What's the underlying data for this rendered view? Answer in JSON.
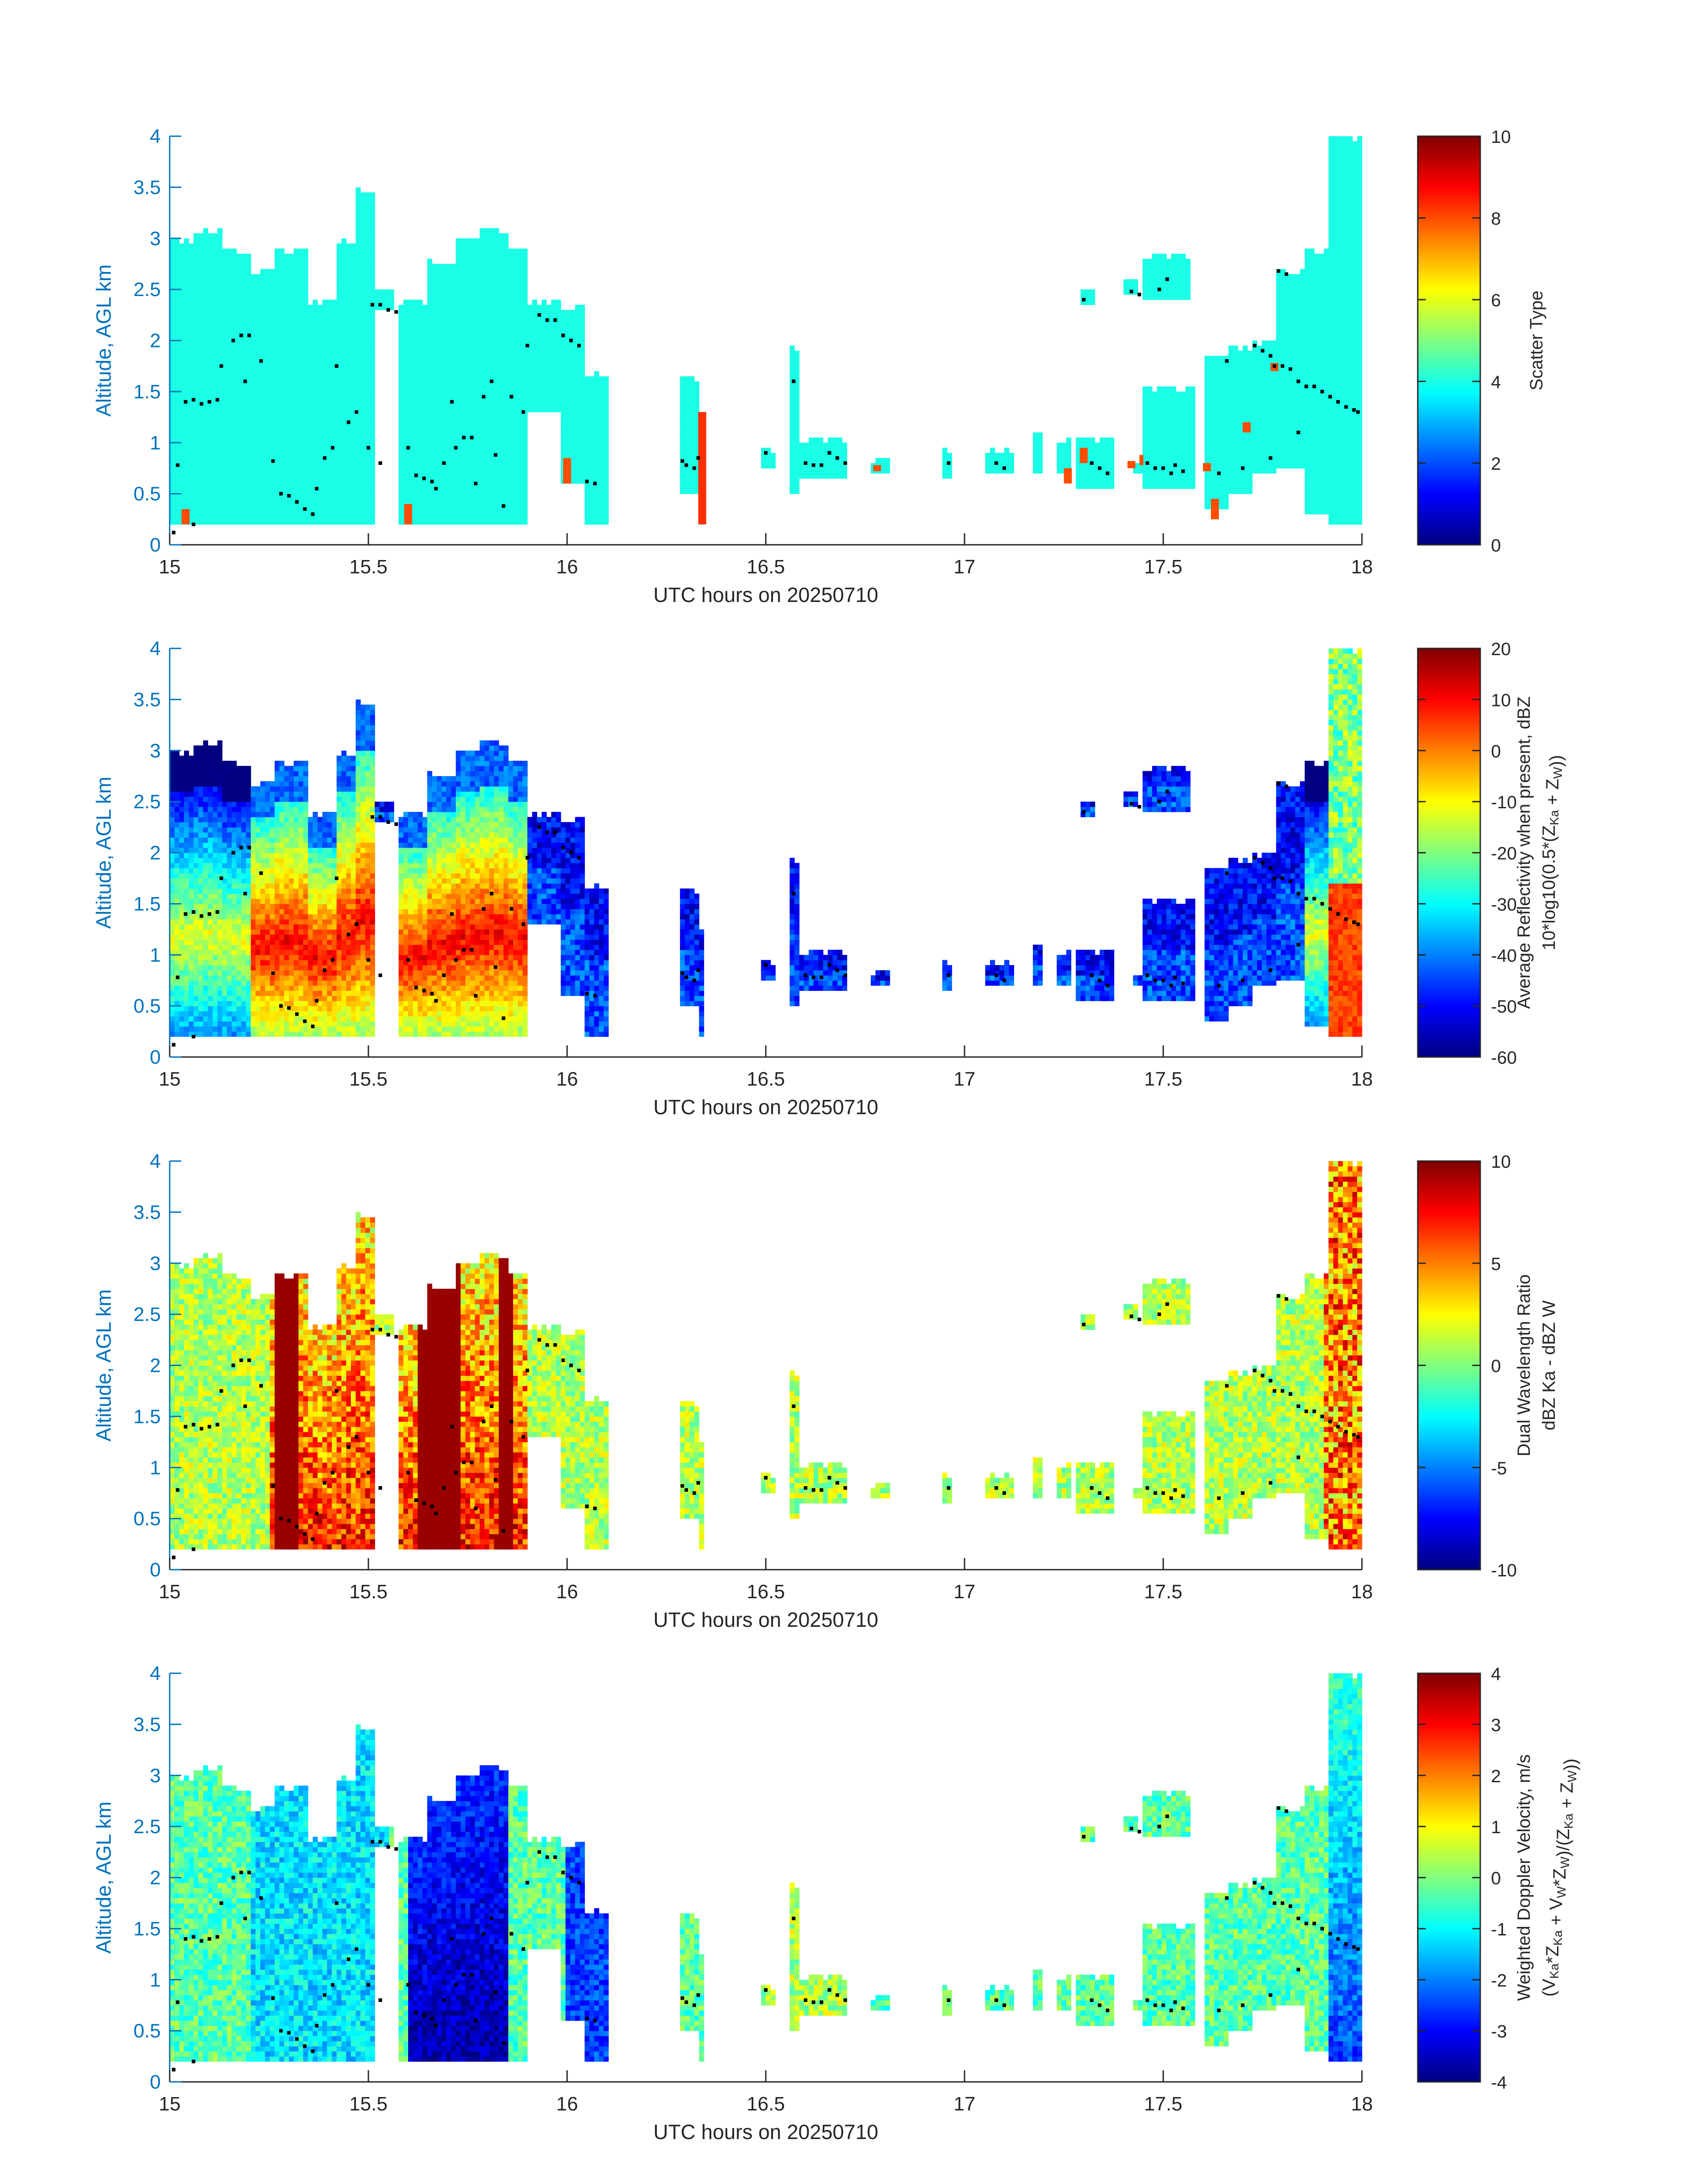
{
  "figure": {
    "colors": {
      "axis_blue": "#0072BD",
      "text_black": "#262626",
      "marker": "#000000"
    }
  },
  "chart_data": [
    {
      "type": "heatmap",
      "panel": "scatter-type",
      "xlabel": "UTC hours on 20250710",
      "ylabel": "Altitude, AGL km",
      "xlim": [
        15,
        18
      ],
      "ylim": [
        0,
        4
      ],
      "xticks": [
        "15",
        "15.5",
        "16",
        "16.5",
        "17",
        "17.5",
        "18"
      ],
      "yticks": [
        "0",
        "0.5",
        "1",
        "1.5",
        "2",
        "2.5",
        "3",
        "3.5",
        "4"
      ],
      "colorbar": {
        "label_lines": [
          "Scatter Type"
        ],
        "ticks": [
          "0",
          "2",
          "4",
          "6",
          "8",
          "10"
        ],
        "range": [
          0,
          10
        ],
        "colormap": "jet"
      },
      "field": "scatter",
      "grid": false
    },
    {
      "type": "heatmap",
      "panel": "reflectivity",
      "xlabel": "UTC hours on 20250710",
      "ylabel": "Altitude, AGL km",
      "xlim": [
        15,
        18
      ],
      "ylim": [
        0,
        4
      ],
      "xticks": [
        "15",
        "15.5",
        "16",
        "16.5",
        "17",
        "17.5",
        "18"
      ],
      "yticks": [
        "0",
        "0.5",
        "1",
        "1.5",
        "2",
        "2.5",
        "3",
        "3.5",
        "4"
      ],
      "colorbar": {
        "label_lines": [
          "Average Reflectivity when present, dBZ",
          "10*log10(0.5*(Z_Ka + Z_W))"
        ],
        "ticks": [
          "-60",
          "-50",
          "-40",
          "-30",
          "-20",
          "-10",
          "0",
          "10",
          "20"
        ],
        "range": [
          -60,
          20
        ],
        "colormap": "jet"
      },
      "field": "reflectivity",
      "grid": false
    },
    {
      "type": "heatmap",
      "panel": "dual-wavelength-ratio",
      "xlabel": "UTC hours on 20250710",
      "ylabel": "Altitude, AGL km",
      "xlim": [
        15,
        18
      ],
      "ylim": [
        0,
        4
      ],
      "xticks": [
        "15",
        "15.5",
        "16",
        "16.5",
        "17",
        "17.5",
        "18"
      ],
      "yticks": [
        "0",
        "0.5",
        "1",
        "1.5",
        "2",
        "2.5",
        "3",
        "3.5",
        "4"
      ],
      "colorbar": {
        "label_lines": [
          "Dual Wavelength Ratio",
          "dBZ Ka - dBZ W"
        ],
        "ticks": [
          "-10",
          "-5",
          "0",
          "5",
          "10"
        ],
        "range": [
          -10,
          10
        ],
        "colormap": "jet"
      },
      "field": "dwr",
      "grid": false
    },
    {
      "type": "heatmap",
      "panel": "doppler-velocity",
      "xlabel": "UTC hours on 20250710",
      "ylabel": "Altitude, AGL km",
      "xlim": [
        15,
        18
      ],
      "ylim": [
        0,
        4
      ],
      "xticks": [
        "15",
        "15.5",
        "16",
        "16.5",
        "17",
        "17.5",
        "18"
      ],
      "yticks": [
        "0",
        "0.5",
        "1",
        "1.5",
        "2",
        "2.5",
        "3",
        "3.5",
        "4"
      ],
      "colorbar": {
        "label_lines": [
          "Weighted Doppler Velocity, m/s",
          "(V_Ka*Z_Ka + V_W*Z_W)/(Z_Ka + Z_W))"
        ],
        "ticks": [
          "-4",
          "-3",
          "-2",
          "-1",
          "0",
          "1",
          "2",
          "3",
          "4"
        ],
        "range": [
          -4,
          4
        ],
        "colormap": "jet"
      },
      "field": "velocity",
      "grid": false
    }
  ],
  "echo_columns": [
    {
      "t": [
        15.0,
        15.06
      ],
      "base": 0.2,
      "top": 3.0
    },
    {
      "t": [
        15.06,
        15.13
      ],
      "base": 0.2,
      "top": 3.1
    },
    {
      "t": [
        15.13,
        15.2
      ],
      "base": 0.2,
      "top": 2.9
    },
    {
      "t": [
        15.2,
        15.27
      ],
      "base": 0.2,
      "top": 2.7
    },
    {
      "t": [
        15.27,
        15.35
      ],
      "base": 0.2,
      "top": 2.9
    },
    {
      "t": [
        15.35,
        15.42
      ],
      "base": 0.2,
      "top": 2.4
    },
    {
      "t": [
        15.42,
        15.47
      ],
      "base": 0.2,
      "top": 3.0
    },
    {
      "t": [
        15.47,
        15.52
      ],
      "base": 0.2,
      "top": 3.5
    },
    {
      "t": [
        15.52,
        15.57
      ],
      "base": 2.3,
      "top": 2.5
    },
    {
      "t": [
        15.58,
        15.65
      ],
      "base": 0.2,
      "top": 2.4
    },
    {
      "t": [
        15.65,
        15.72
      ],
      "base": 0.2,
      "top": 2.8
    },
    {
      "t": [
        15.72,
        15.78
      ],
      "base": 0.2,
      "top": 3.0
    },
    {
      "t": [
        15.78,
        15.85
      ],
      "base": 0.2,
      "top": 3.1
    },
    {
      "t": [
        15.85,
        15.9
      ],
      "base": 0.2,
      "top": 2.9
    },
    {
      "t": [
        15.9,
        15.98
      ],
      "base": 1.3,
      "top": 2.4
    },
    {
      "t": [
        15.98,
        16.05
      ],
      "base": 0.6,
      "top": 2.35
    },
    {
      "t": [
        16.05,
        16.11
      ],
      "base": 0.2,
      "top": 1.7
    },
    {
      "t": [
        16.28,
        16.33
      ],
      "base": 0.5,
      "top": 1.65
    },
    {
      "t": [
        16.33,
        16.35
      ],
      "base": 0.2,
      "top": 1.3
    },
    {
      "t": [
        16.49,
        16.52
      ],
      "base": 0.75,
      "top": 0.95
    },
    {
      "t": [
        16.56,
        16.59
      ],
      "base": 0.5,
      "top": 1.95
    },
    {
      "t": [
        16.59,
        16.71
      ],
      "base": 0.65,
      "top": 1.05
    },
    {
      "t": [
        16.76,
        16.81
      ],
      "base": 0.7,
      "top": 0.85
    },
    {
      "t": [
        16.95,
        16.97
      ],
      "base": 0.65,
      "top": 0.95
    },
    {
      "t": [
        17.05,
        17.12
      ],
      "base": 0.7,
      "top": 0.95
    },
    {
      "t": [
        17.17,
        17.2
      ],
      "base": 0.7,
      "top": 1.1
    },
    {
      "t": [
        17.23,
        17.27
      ],
      "base": 0.7,
      "top": 1.05
    },
    {
      "t": [
        17.28,
        17.38
      ],
      "base": 0.55,
      "top": 1.05
    },
    {
      "t": [
        17.42,
        17.45
      ],
      "base": 0.7,
      "top": 0.85
    },
    {
      "t": [
        17.45,
        17.58
      ],
      "base": 0.55,
      "top": 1.55
    },
    {
      "t": [
        17.61,
        17.66
      ],
      "base": 0.35,
      "top": 1.85
    },
    {
      "t": [
        17.66,
        17.72
      ],
      "base": 0.5,
      "top": 1.95
    },
    {
      "t": [
        17.72,
        17.78
      ],
      "base": 0.7,
      "top": 2.0
    },
    {
      "t": [
        17.78,
        17.86
      ],
      "base": 0.75,
      "top": 2.7
    },
    {
      "t": [
        17.86,
        17.92
      ],
      "base": 0.3,
      "top": 2.9
    },
    {
      "t": [
        17.92,
        18.0
      ],
      "base": 0.2,
      "top": 4.0
    },
    {
      "t": [
        17.45,
        17.57
      ],
      "base": 2.4,
      "top": 2.85
    },
    {
      "t": [
        17.4,
        17.44
      ],
      "base": 2.45,
      "top": 2.6
    },
    {
      "t": [
        17.29,
        17.33
      ],
      "base": 2.35,
      "top": 2.5
    }
  ],
  "marker_points": [
    [
      15.01,
      0.12
    ],
    [
      15.06,
      0.2
    ],
    [
      15.02,
      0.78
    ],
    [
      15.04,
      1.4
    ],
    [
      15.06,
      1.42
    ],
    [
      15.08,
      1.38
    ],
    [
      15.1,
      1.4
    ],
    [
      15.12,
      1.42
    ],
    [
      15.13,
      1.75
    ],
    [
      15.16,
      2.0
    ],
    [
      15.18,
      2.05
    ],
    [
      15.2,
      2.05
    ],
    [
      15.19,
      1.6
    ],
    [
      15.23,
      1.8
    ],
    [
      15.26,
      0.82
    ],
    [
      15.28,
      0.5
    ],
    [
      15.3,
      0.48
    ],
    [
      15.32,
      0.42
    ],
    [
      15.34,
      0.35
    ],
    [
      15.36,
      0.3
    ],
    [
      15.37,
      0.55
    ],
    [
      15.39,
      0.85
    ],
    [
      15.41,
      0.95
    ],
    [
      15.42,
      1.75
    ],
    [
      15.45,
      1.2
    ],
    [
      15.47,
      1.3
    ],
    [
      15.5,
      0.95
    ],
    [
      15.51,
      2.35
    ],
    [
      15.53,
      2.35
    ],
    [
      15.55,
      2.3
    ],
    [
      15.57,
      2.28
    ],
    [
      15.53,
      0.8
    ],
    [
      15.6,
      0.95
    ],
    [
      15.62,
      0.68
    ],
    [
      15.64,
      0.65
    ],
    [
      15.66,
      0.62
    ],
    [
      15.67,
      0.55
    ],
    [
      15.69,
      0.8
    ],
    [
      15.71,
      1.4
    ],
    [
      15.72,
      0.95
    ],
    [
      15.74,
      1.05
    ],
    [
      15.76,
      1.05
    ],
    [
      15.77,
      0.6
    ],
    [
      15.79,
      1.45
    ],
    [
      15.81,
      1.6
    ],
    [
      15.82,
      0.88
    ],
    [
      15.84,
      0.38
    ],
    [
      15.86,
      1.45
    ],
    [
      15.89,
      1.3
    ],
    [
      15.9,
      1.95
    ],
    [
      15.93,
      2.25
    ],
    [
      15.95,
      2.2
    ],
    [
      15.97,
      2.2
    ],
    [
      15.99,
      2.05
    ],
    [
      16.01,
      2.0
    ],
    [
      16.03,
      1.95
    ],
    [
      16.05,
      0.62
    ],
    [
      16.07,
      0.6
    ],
    [
      16.29,
      0.82
    ],
    [
      16.3,
      0.78
    ],
    [
      16.32,
      0.75
    ],
    [
      16.33,
      0.85
    ],
    [
      16.5,
      0.9
    ],
    [
      16.57,
      1.6
    ],
    [
      16.6,
      0.8
    ],
    [
      16.62,
      0.78
    ],
    [
      16.64,
      0.78
    ],
    [
      16.66,
      0.9
    ],
    [
      16.68,
      0.85
    ],
    [
      16.7,
      0.8
    ],
    [
      16.96,
      0.8
    ],
    [
      17.08,
      0.8
    ],
    [
      17.1,
      0.75
    ],
    [
      17.3,
      2.4
    ],
    [
      17.32,
      0.8
    ],
    [
      17.34,
      0.75
    ],
    [
      17.36,
      0.7
    ],
    [
      17.42,
      2.48
    ],
    [
      17.44,
      2.45
    ],
    [
      17.49,
      2.5
    ],
    [
      17.51,
      2.6
    ],
    [
      17.46,
      0.8
    ],
    [
      17.48,
      0.75
    ],
    [
      17.5,
      0.75
    ],
    [
      17.52,
      0.7
    ],
    [
      17.53,
      0.78
    ],
    [
      17.55,
      0.72
    ],
    [
      17.64,
      0.7
    ],
    [
      17.66,
      1.8
    ],
    [
      17.7,
      0.75
    ],
    [
      17.73,
      1.95
    ],
    [
      17.75,
      1.9
    ],
    [
      17.77,
      1.85
    ],
    [
      17.78,
      1.75
    ],
    [
      17.8,
      1.75
    ],
    [
      17.82,
      1.72
    ],
    [
      17.79,
      2.68
    ],
    [
      17.81,
      2.65
    ],
    [
      17.84,
      1.6
    ],
    [
      17.86,
      1.55
    ],
    [
      17.88,
      1.55
    ],
    [
      17.9,
      1.5
    ],
    [
      17.92,
      1.45
    ],
    [
      17.94,
      1.4
    ],
    [
      17.96,
      1.35
    ],
    [
      17.98,
      1.32
    ],
    [
      17.99,
      1.3
    ],
    [
      17.77,
      0.85
    ],
    [
      17.84,
      1.1
    ]
  ],
  "scatter_patches": [
    {
      "t": [
        15.03,
        15.05
      ],
      "h": [
        0.2,
        0.35
      ],
      "value": 8
    },
    {
      "t": [
        15.59,
        15.61
      ],
      "h": [
        0.2,
        0.4
      ],
      "value": 8
    },
    {
      "t": [
        15.99,
        16.01
      ],
      "h": [
        0.6,
        0.85
      ],
      "value": 8
    },
    {
      "t": [
        16.33,
        16.35
      ],
      "h": [
        0.2,
        1.3
      ],
      "value": 8.3
    },
    {
      "t": [
        16.77,
        16.79
      ],
      "h": [
        0.72,
        0.78
      ],
      "value": 8
    },
    {
      "t": [
        17.25,
        17.27
      ],
      "h": [
        0.6,
        0.75
      ],
      "value": 8
    },
    {
      "t": [
        17.29,
        17.31
      ],
      "h": [
        0.8,
        0.95
      ],
      "value": 8
    },
    {
      "t": [
        17.41,
        17.43
      ],
      "h": [
        0.75,
        0.82
      ],
      "value": 8
    },
    {
      "t": [
        17.44,
        17.45
      ],
      "h": [
        0.78,
        0.88
      ],
      "value": 8
    },
    {
      "t": [
        17.6,
        17.62
      ],
      "h": [
        0.72,
        0.8
      ],
      "value": 8
    },
    {
      "t": [
        17.62,
        17.64
      ],
      "h": [
        0.25,
        0.45
      ],
      "value": 8
    },
    {
      "t": [
        17.7,
        17.72
      ],
      "h": [
        1.1,
        1.2
      ],
      "value": 8
    },
    {
      "t": [
        17.77,
        17.79
      ],
      "h": [
        1.7,
        1.78
      ],
      "value": 8
    }
  ]
}
